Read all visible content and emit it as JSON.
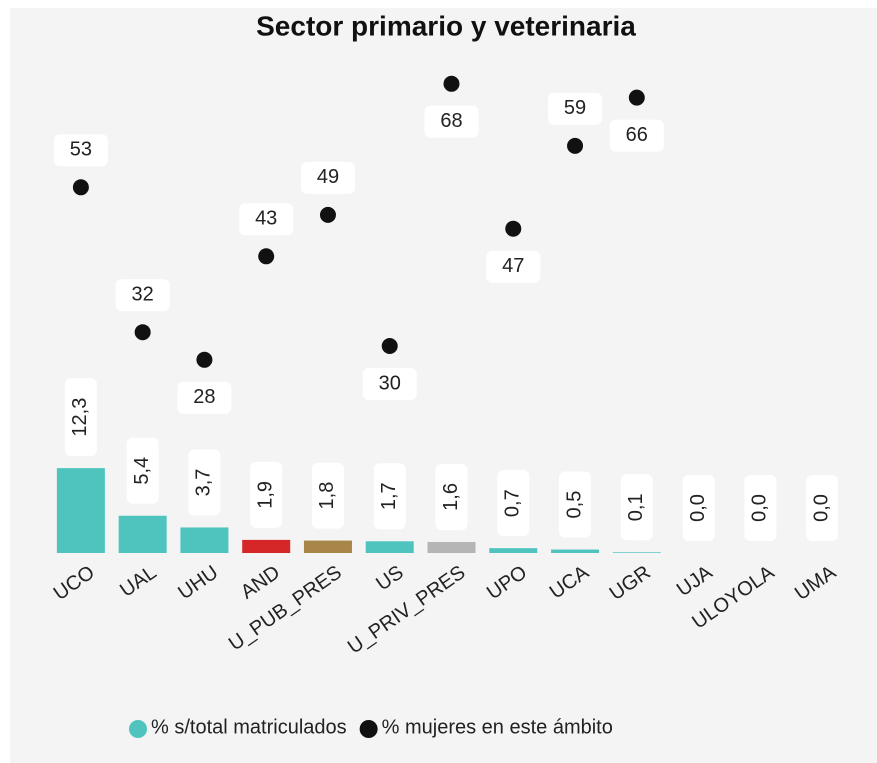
{
  "chart_data": {
    "type": "bar",
    "title": "Sector primario y veterinaria",
    "categories": [
      "UCO",
      "UAL",
      "UHU",
      "AND",
      "U_PUB_PRES",
      "US",
      "U_PRIV_PRES",
      "UPO",
      "UCA",
      "UGR",
      "UJA",
      "ULOYOLA",
      "UMA"
    ],
    "ylim": [
      0,
      70
    ],
    "series": [
      {
        "name": "% s/total matriculados",
        "type": "bar",
        "color": "#4fc4bf",
        "colors": [
          "#4fc4bf",
          "#4fc4bf",
          "#4fc4bf",
          "#d62728",
          "#a8864a",
          "#4fc4bf",
          "#b5b5b5",
          "#4fc4bf",
          "#4fc4bf",
          "#4fc4bf",
          "#4fc4bf",
          "#4fc4bf",
          "#4fc4bf"
        ],
        "values": [
          12.3,
          5.4,
          3.7,
          1.9,
          1.8,
          1.7,
          1.6,
          0.7,
          0.5,
          0.1,
          0,
          0,
          0
        ],
        "value_labels": [
          "12,3",
          "5,4",
          "3,7",
          "1,9",
          "1,8",
          "1,7",
          "1,6",
          "0,7",
          "0,5",
          "0,1",
          "0,0",
          "0,0",
          "0,0"
        ]
      },
      {
        "name": "% mujeres en este ámbito",
        "type": "scatter",
        "color": "#111111",
        "values": [
          53,
          32,
          28,
          43,
          49,
          30,
          68,
          47,
          59,
          66,
          null,
          null,
          null
        ]
      }
    ]
  }
}
